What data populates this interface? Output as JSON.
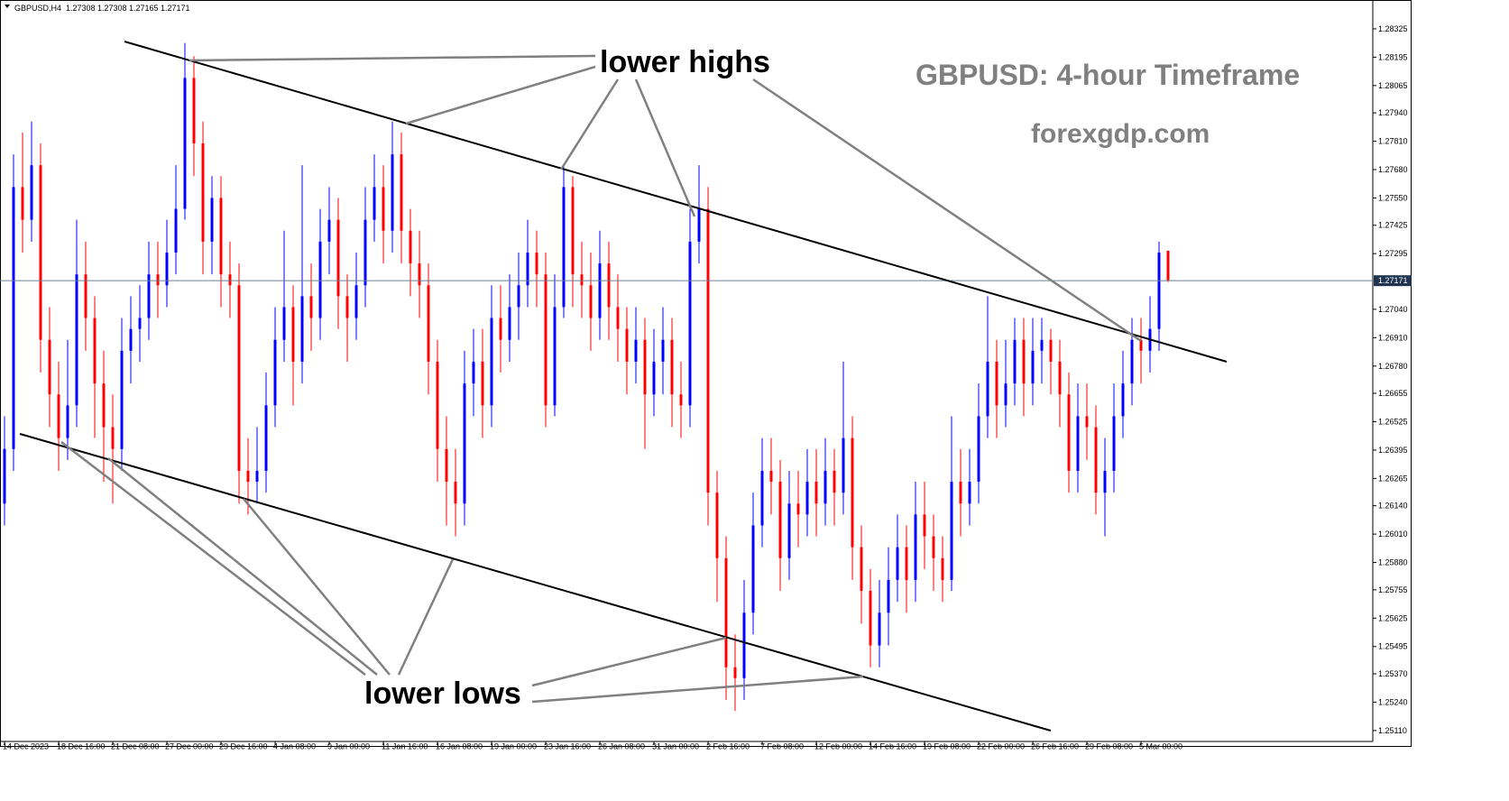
{
  "chart_data": {
    "type": "candlestick",
    "symbol": "GBPUSD,H4",
    "title": "GBPUSD: 4-hour Timeframe",
    "subtitle": "forexgdp.com",
    "annotations": [
      "lower highs",
      "lower lows"
    ],
    "up_color": "#0000ff",
    "down_color": "#ff0000",
    "ylim": [
      1.2506,
      1.28457
    ],
    "yticks": [
      1.28325,
      1.28195,
      1.28065,
      {
        "value": 1.2794,
        "label": "1.27940"
      },
      {
        "value": 1.2781,
        "label": "1.27810"
      },
      {
        "value": 1.2768,
        "label": "1.27680"
      },
      {
        "value": 1.2755,
        "label": "1.27550"
      },
      1.27425,
      1.27295,
      {
        "value": 1.2704,
        "label": "1.27040"
      },
      {
        "value": 1.2691,
        "label": "1.26910"
      },
      {
        "value": 1.2678,
        "label": "1.26780"
      },
      1.26655,
      1.26525,
      1.26395,
      1.26265,
      {
        "value": 1.2614,
        "label": "1.26140"
      },
      {
        "value": 1.2601,
        "label": "1.26010"
      },
      {
        "value": 1.2588,
        "label": "1.25880"
      },
      1.25755,
      1.25625,
      1.25495,
      {
        "value": 1.2537,
        "label": "1.25370"
      },
      {
        "value": 1.2524,
        "label": "1.25240"
      },
      {
        "value": 1.2511,
        "label": "1.25110"
      }
    ],
    "categories": [
      "14 Dec 2023",
      null,
      null,
      null,
      null,
      null,
      "18 Dec 16:00",
      null,
      null,
      null,
      null,
      null,
      "21 Dec 08:00",
      null,
      null,
      null,
      null,
      null,
      "27 Dec 00:00",
      null,
      null,
      null,
      null,
      null,
      "29 Dec 16:00",
      null,
      null,
      null,
      null,
      null,
      "4 Jan 08:00",
      null,
      null,
      null,
      null,
      null,
      "9 Jan 00:00",
      null,
      null,
      null,
      null,
      null,
      "11 Jan 16:00",
      null,
      null,
      null,
      null,
      null,
      "16 Jan 08:00",
      null,
      null,
      null,
      null,
      null,
      "19 Jan 00:00",
      null,
      null,
      null,
      null,
      null,
      "23 Jan 16:00",
      null,
      null,
      null,
      null,
      null,
      "26 Jan 08:00",
      null,
      null,
      null,
      null,
      null,
      "31 Jan 00:00",
      null,
      null,
      null,
      null,
      null,
      "2 Feb 16:00",
      null,
      null,
      null,
      null,
      null,
      "7 Feb 08:00",
      null,
      null,
      null,
      null,
      null,
      "12 Feb 00:00",
      null,
      null,
      null,
      null,
      null,
      "14 Feb 16:00",
      null,
      null,
      null,
      null,
      null,
      "19 Feb 08:00",
      null,
      null,
      null,
      null,
      null,
      "22 Feb 00:00",
      null,
      null,
      null,
      null,
      null,
      "26 Feb 16:00",
      null,
      null,
      null,
      null,
      null,
      "29 Feb 08:00",
      null,
      null,
      null,
      null,
      null,
      "5 Mar 00:00",
      null,
      null,
      null
    ],
    "open": [
      1.2615,
      1.264,
      1.276,
      1.2745,
      1.277,
      1.269,
      1.2665,
      1.2645,
      1.266,
      1.272,
      1.27,
      1.267,
      1.265,
      1.264,
      1.2685,
      1.2695,
      1.27,
      1.272,
      1.2715,
      1.273,
      1.275,
      1.281,
      1.278,
      1.2735,
      1.2755,
      1.272,
      1.2715,
      1.263,
      1.2625,
      1.263,
      1.266,
      1.269,
      1.2705,
      1.268,
      1.271,
      1.27,
      1.2735,
      1.2745,
      1.271,
      1.27,
      1.2715,
      1.2745,
      1.276,
      1.274,
      1.2775,
      1.274,
      1.2725,
      1.2715,
      1.268,
      1.264,
      1.2625,
      1.2615,
      1.267,
      1.268,
      1.266,
      1.27,
      1.269,
      1.2705,
      1.2715,
      1.273,
      1.272,
      1.266,
      1.2705,
      1.276,
      1.272,
      1.2715,
      1.27,
      1.2725,
      1.2705,
      1.2695,
      1.268,
      1.269,
      1.2665,
      1.268,
      1.269,
      1.2665,
      1.266,
      1.2735,
      1.275,
      1.262,
      1.259,
      1.254,
      1.2535,
      1.2565,
      1.2605,
      1.263,
      1.2625,
      1.259,
      1.2615,
      1.261,
      1.2625,
      1.2615,
      1.263,
      1.262,
      1.2645,
      1.2595,
      1.2575,
      1.255,
      1.2565,
      1.258,
      1.2595,
      1.258,
      1.261,
      1.26,
      1.259,
      1.258,
      1.2625,
      1.2615,
      1.2625,
      1.2655,
      1.268,
      1.266,
      1.267,
      1.269,
      1.267,
      1.2685,
      1.269,
      1.268,
      1.2665,
      1.263,
      1.2655,
      1.265,
      1.262,
      1.263,
      1.2655,
      1.267,
      1.269,
      1.2685,
      1.2695,
      1.27308
    ],
    "high": [
      1.2655,
      1.2775,
      1.2785,
      1.279,
      1.278,
      1.2705,
      1.268,
      1.269,
      1.2745,
      1.2735,
      1.271,
      1.2685,
      1.2665,
      1.27,
      1.271,
      1.2715,
      1.2735,
      1.2735,
      1.2745,
      1.277,
      1.2826,
      1.282,
      1.279,
      1.2765,
      1.2765,
      1.2735,
      1.2725,
      1.2645,
      1.265,
      1.2675,
      1.2705,
      1.274,
      1.2715,
      1.277,
      1.2725,
      1.275,
      1.276,
      1.2755,
      1.272,
      1.273,
      1.276,
      1.2775,
      1.277,
      1.279,
      1.2785,
      1.275,
      1.274,
      1.2725,
      1.269,
      1.2655,
      1.264,
      1.2685,
      1.2695,
      1.2695,
      1.2715,
      1.2715,
      1.272,
      1.273,
      1.2745,
      1.274,
      1.273,
      1.272,
      1.277,
      1.2765,
      1.2735,
      1.273,
      1.274,
      1.2735,
      1.272,
      1.2705,
      1.2705,
      1.27,
      1.2695,
      1.2705,
      1.27,
      1.268,
      1.275,
      1.277,
      1.276,
      1.263,
      1.26,
      1.2555,
      1.258,
      1.262,
      1.2645,
      1.2645,
      1.2635,
      1.263,
      1.263,
      1.264,
      1.264,
      1.2645,
      1.264,
      1.268,
      1.2655,
      1.2605,
      1.2585,
      1.258,
      1.2595,
      1.261,
      1.2605,
      1.2625,
      1.2625,
      1.261,
      1.26,
      1.2655,
      1.264,
      1.264,
      1.267,
      1.271,
      1.269,
      1.269,
      1.27,
      1.27,
      1.27,
      1.27,
      1.2695,
      1.269,
      1.2675,
      1.267,
      1.267,
      1.266,
      1.2645,
      1.267,
      1.2685,
      1.27,
      1.27,
      1.271,
      1.2735,
      1.27308
    ],
    "low": [
      1.2605,
      1.263,
      1.273,
      1.2735,
      1.2675,
      1.265,
      1.263,
      1.2635,
      1.265,
      1.2685,
      1.2645,
      1.2625,
      1.2615,
      1.263,
      1.267,
      1.268,
      1.269,
      1.27,
      1.2705,
      1.272,
      1.2745,
      1.2765,
      1.272,
      1.272,
      1.2705,
      1.27,
      1.2615,
      1.261,
      1.2615,
      1.262,
      1.265,
      1.268,
      1.266,
      1.267,
      1.2685,
      1.269,
      1.272,
      1.2695,
      1.268,
      1.269,
      1.2705,
      1.2735,
      1.2725,
      1.273,
      1.2725,
      1.271,
      1.27,
      1.2665,
      1.2625,
      1.2605,
      1.26,
      1.2605,
      1.2655,
      1.2645,
      1.265,
      1.2675,
      1.268,
      1.269,
      1.2705,
      1.2705,
      1.265,
      1.2655,
      1.27,
      1.2705,
      1.27,
      1.2685,
      1.269,
      1.269,
      1.268,
      1.2665,
      1.267,
      1.264,
      1.2655,
      1.2665,
      1.265,
      1.2645,
      1.265,
      1.2725,
      1.2605,
      1.257,
      1.2525,
      1.252,
      1.2525,
      1.2555,
      1.2595,
      1.261,
      1.2575,
      1.258,
      1.2595,
      1.26,
      1.26,
      1.2605,
      1.2605,
      1.261,
      1.258,
      1.256,
      1.254,
      1.254,
      1.255,
      1.257,
      1.2565,
      1.257,
      1.2585,
      1.2575,
      1.257,
      1.2575,
      1.26,
      1.2605,
      1.2615,
      1.2645,
      1.2645,
      1.265,
      1.266,
      1.2655,
      1.266,
      1.267,
      1.2665,
      1.265,
      1.262,
      1.262,
      1.2635,
      1.261,
      1.26,
      1.262,
      1.2645,
      1.266,
      1.267,
      1.2675,
      1.2685,
      1.27165
    ],
    "close": [
      1.264,
      1.276,
      1.2745,
      1.277,
      1.269,
      1.2665,
      1.2645,
      1.266,
      1.272,
      1.27,
      1.267,
      1.265,
      1.264,
      1.2685,
      1.2695,
      1.27,
      1.272,
      1.2715,
      1.273,
      1.275,
      1.281,
      1.278,
      1.2735,
      1.2755,
      1.272,
      1.2715,
      1.263,
      1.2625,
      1.263,
      1.266,
      1.269,
      1.2705,
      1.268,
      1.271,
      1.27,
      1.2735,
      1.2745,
      1.271,
      1.27,
      1.2715,
      1.2745,
      1.276,
      1.274,
      1.2775,
      1.274,
      1.2725,
      1.2715,
      1.268,
      1.264,
      1.2625,
      1.2615,
      1.267,
      1.268,
      1.266,
      1.27,
      1.269,
      1.2705,
      1.2715,
      1.273,
      1.272,
      1.266,
      1.2705,
      1.276,
      1.272,
      1.2715,
      1.27,
      1.2725,
      1.2705,
      1.2695,
      1.268,
      1.269,
      1.2665,
      1.268,
      1.269,
      1.2665,
      1.266,
      1.2735,
      1.275,
      1.262,
      1.259,
      1.254,
      1.2535,
      1.2565,
      1.2605,
      1.263,
      1.2625,
      1.259,
      1.2615,
      1.261,
      1.2625,
      1.2615,
      1.263,
      1.262,
      1.2645,
      1.2595,
      1.2575,
      1.255,
      1.2565,
      1.258,
      1.2595,
      1.258,
      1.261,
      1.26,
      1.259,
      1.258,
      1.2625,
      1.2615,
      1.2625,
      1.2655,
      1.268,
      1.266,
      1.267,
      1.269,
      1.267,
      1.2685,
      1.269,
      1.268,
      1.2665,
      1.263,
      1.2655,
      1.265,
      1.262,
      1.263,
      1.2655,
      1.267,
      1.269,
      1.2685,
      1.2695,
      1.273,
      1.27171
    ]
  }
}
